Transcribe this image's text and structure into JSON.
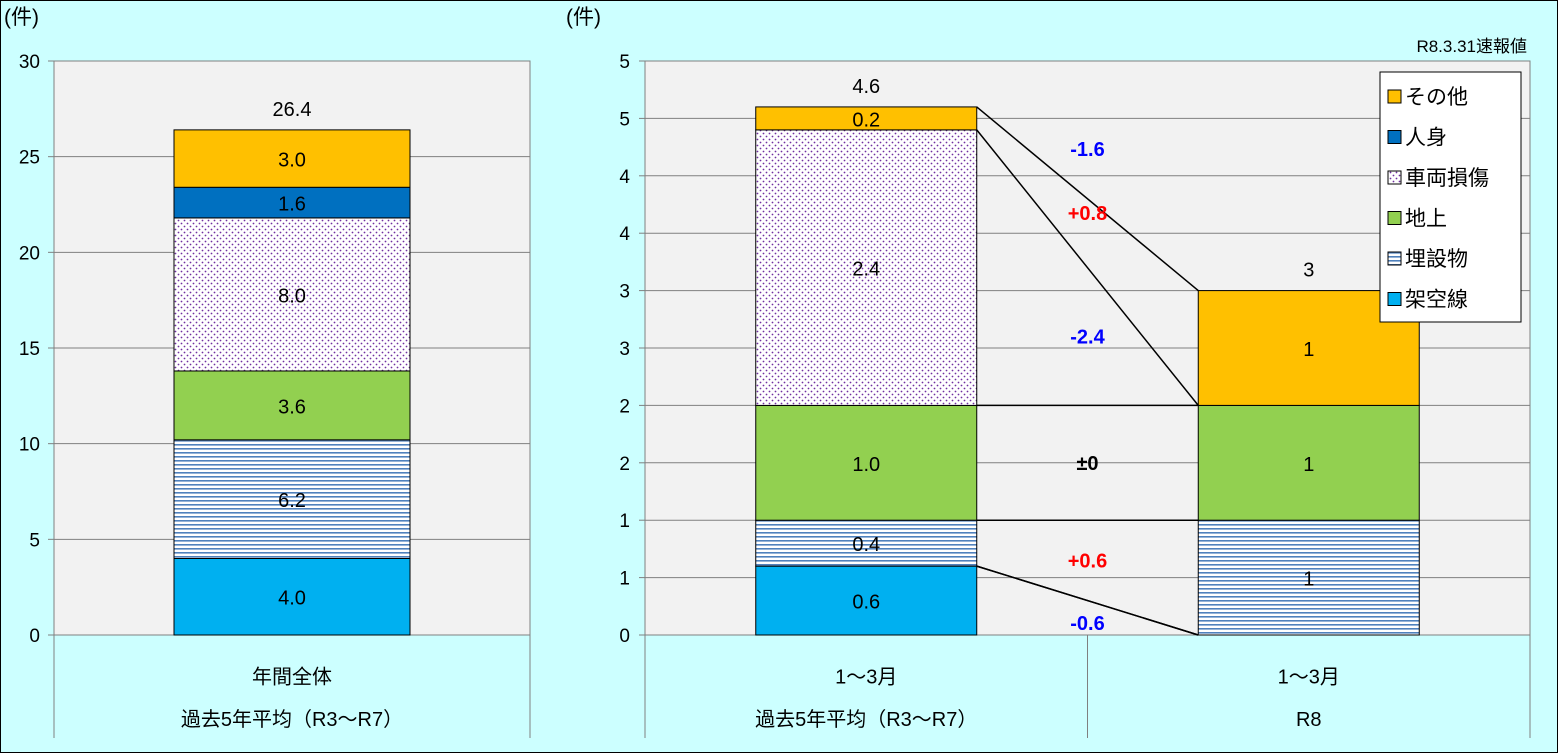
{
  "chart_data": [
    {
      "type": "bar",
      "stacked": true,
      "ylabel": "(件)",
      "ylim": [
        0,
        30
      ],
      "yticks": [
        "0",
        "5",
        "10",
        "15",
        "20",
        "25",
        "30"
      ],
      "grid": true,
      "categories": [
        [
          "年間全体",
          "過去5年平均（R3～R7）"
        ]
      ],
      "series": [
        {
          "name": "架空線",
          "values": [
            4.0
          ],
          "labels": [
            "4.0"
          ],
          "color": "#00b0f0",
          "pattern": "solid"
        },
        {
          "name": "埋設物",
          "values": [
            6.2
          ],
          "labels": [
            "6.2"
          ],
          "color": "#4f81bd",
          "pattern": "hlines"
        },
        {
          "name": "地上",
          "values": [
            3.6
          ],
          "labels": [
            "3.6"
          ],
          "color": "#92d050",
          "pattern": "solid"
        },
        {
          "name": "車両損傷",
          "values": [
            8.0
          ],
          "labels": [
            "8.0"
          ],
          "color": "#7030a0",
          "pattern": "dots"
        },
        {
          "name": "人身",
          "values": [
            1.6
          ],
          "labels": [
            "1.6"
          ],
          "color": "#0070c0",
          "pattern": "solid"
        },
        {
          "name": "その他",
          "values": [
            3.0
          ],
          "labels": [
            "3.0"
          ],
          "color": "#ffc000",
          "pattern": "solid"
        }
      ],
      "totals": [
        "26.4"
      ]
    },
    {
      "type": "bar",
      "stacked": true,
      "ylabel": "(件)",
      "ylim": [
        0,
        5
      ],
      "yticks": [
        "0",
        "1",
        "1",
        "2",
        "2",
        "3",
        "3",
        "4",
        "4",
        "5",
        "5"
      ],
      "grid": true,
      "note": "R8.3.31速報値",
      "categories": [
        [
          "1～3月",
          "過去5年平均（R3～R7）"
        ],
        [
          "1～3月",
          "R8"
        ]
      ],
      "series": [
        {
          "name": "架空線",
          "values": [
            0.6,
            0
          ],
          "labels": [
            "0.6",
            ""
          ],
          "color": "#00b0f0",
          "pattern": "solid"
        },
        {
          "name": "埋設物",
          "values": [
            0.4,
            1
          ],
          "labels": [
            "0.4",
            "1"
          ],
          "color": "#4f81bd",
          "pattern": "hlines"
        },
        {
          "name": "地上",
          "values": [
            1.0,
            1
          ],
          "labels": [
            "1.0",
            "1"
          ],
          "color": "#92d050",
          "pattern": "solid"
        },
        {
          "name": "車両損傷",
          "values": [
            2.4,
            0
          ],
          "labels": [
            "2.4",
            ""
          ],
          "color": "#7030a0",
          "pattern": "dots"
        },
        {
          "name": "人身",
          "values": [
            0,
            0
          ],
          "labels": [
            "",
            ""
          ],
          "color": "#0070c0",
          "pattern": "solid"
        },
        {
          "name": "その他",
          "values": [
            0.2,
            1
          ],
          "labels": [
            "0.2",
            "1"
          ],
          "color": "#ffc000",
          "pattern": "solid"
        }
      ],
      "totals": [
        "4.6",
        "3"
      ],
      "differences": [
        {
          "series": "架空線",
          "text": "-0.6",
          "color": "#0000ff"
        },
        {
          "series": "埋設物",
          "text": "+0.6",
          "color": "#ff0000"
        },
        {
          "series": "地上",
          "text": "±0",
          "color": "#000000"
        },
        {
          "series": "車両損傷",
          "text": "-2.4",
          "color": "#0000ff"
        },
        {
          "series": "その他",
          "text": "+0.8",
          "color": "#ff0000"
        },
        {
          "series": "全体",
          "text": "-1.6",
          "color": "#0000ff"
        }
      ],
      "legend": {
        "position": "top-right",
        "order": [
          "その他",
          "人身",
          "車両損傷",
          "地上",
          "埋設物",
          "架空線"
        ]
      }
    }
  ]
}
